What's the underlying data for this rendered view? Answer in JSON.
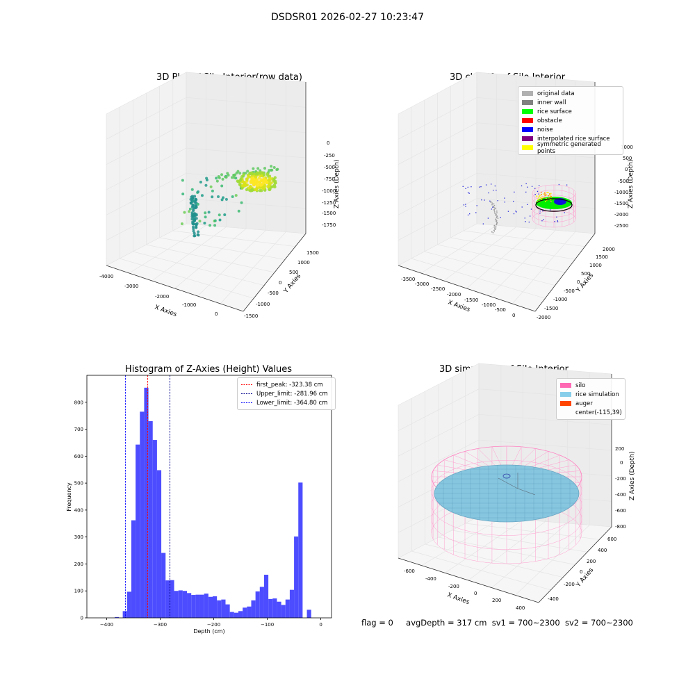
{
  "page": {
    "suptitle": "DSDSR01 2026-02-27 10:23:47",
    "footer": {
      "flag": "flag = 0",
      "avg_depth": "avgDepth = 317 cm",
      "sv1": "sv1 = 700~2300",
      "sv2": "sv2 = 700~2300"
    }
  },
  "chart_data": [
    {
      "type": "scatter",
      "title": "3D Plot of Silo Interior(row data)",
      "xlabel": "X Axies",
      "ylabel": "Y Axies",
      "zlabel": "Z Axies (Depth)",
      "xticks": [
        "-4000",
        "-3000",
        "-2000",
        "-1000",
        "0"
      ],
      "yticks": [
        "-1500",
        "-1000",
        "-500",
        "0",
        "500",
        "1000",
        "1500"
      ],
      "zticks": [
        "0",
        "-250",
        "-500",
        "-750",
        "-1000",
        "-1250",
        "-1500",
        "-1750"
      ],
      "grid": true
    },
    {
      "type": "scatter",
      "title": "3D classify of Silo Interior",
      "xlabel": "X Axies",
      "ylabel": "Y Axies",
      "zlabel": "Z Axies (Depth)",
      "xticks": [
        "-3500",
        "-3000",
        "-2500",
        "-2000",
        "-1500",
        "-1000",
        "-500",
        "0"
      ],
      "yticks": [
        "-2000",
        "-1500",
        "-1000",
        "-500",
        "0",
        "500",
        "1000",
        "1500",
        "2000"
      ],
      "zticks": [
        "1000",
        "500",
        "0",
        "-500",
        "-1000",
        "-1500",
        "-2000",
        "-2500"
      ],
      "legend": [
        {
          "name": "original data",
          "color": "#b0b0b0"
        },
        {
          "name": "inner wall",
          "color": "#808080"
        },
        {
          "name": "rice surface",
          "color": "#00ff00"
        },
        {
          "name": "obstacle",
          "color": "#ff0000"
        },
        {
          "name": "noise",
          "color": "#0000ff"
        },
        {
          "name": "interpolated rice surface",
          "color": "#800080"
        },
        {
          "name": "symmetric generated points",
          "color": "#ffff00"
        }
      ],
      "legend_position": "top-right",
      "grid": true
    },
    {
      "type": "bar",
      "title": "Histogram of Z-Axies (Height) Values",
      "xlabel": "Depth (cm)",
      "ylabel": "Frequency",
      "xlim": [
        -437,
        20
      ],
      "ylim": [
        0,
        900
      ],
      "xticks": [
        -400,
        -300,
        -200,
        -100,
        0
      ],
      "yticks": [
        0,
        100,
        200,
        300,
        400,
        500,
        600,
        700,
        800
      ],
      "bin_width": 8,
      "bins": [
        [
          -425,
          0
        ],
        [
          -417,
          0
        ],
        [
          -409,
          0
        ],
        [
          -401,
          0
        ],
        [
          -393,
          0
        ],
        [
          -385,
          3
        ],
        [
          -377,
          0
        ],
        [
          -369,
          0
        ],
        [
          -370,
          25
        ],
        [
          -362,
          97
        ],
        [
          -354,
          362
        ],
        [
          -346,
          643
        ],
        [
          -338,
          765
        ],
        [
          -330,
          854
        ],
        [
          -322,
          730
        ],
        [
          -314,
          660
        ],
        [
          -306,
          548
        ],
        [
          -298,
          241
        ],
        [
          -290,
          139
        ],
        [
          -282,
          140
        ],
        [
          -274,
          100
        ],
        [
          -266,
          102
        ],
        [
          -258,
          100
        ],
        [
          -250,
          92
        ],
        [
          -242,
          85
        ],
        [
          -234,
          86
        ],
        [
          -226,
          86
        ],
        [
          -218,
          90
        ],
        [
          -210,
          78
        ],
        [
          -202,
          80
        ],
        [
          -194,
          65
        ],
        [
          -186,
          68
        ],
        [
          -178,
          50
        ],
        [
          -170,
          22
        ],
        [
          -162,
          19
        ],
        [
          -154,
          25
        ],
        [
          -146,
          38
        ],
        [
          -138,
          42
        ],
        [
          -130,
          65
        ],
        [
          -122,
          98
        ],
        [
          -114,
          115
        ],
        [
          -106,
          160
        ],
        [
          -98,
          70
        ],
        [
          -90,
          72
        ],
        [
          -82,
          60
        ],
        [
          -74,
          48
        ],
        [
          -66,
          68
        ],
        [
          -58,
          104
        ],
        [
          -50,
          302
        ],
        [
          -42,
          502
        ],
        [
          -34,
          0
        ],
        [
          -26,
          30
        ]
      ],
      "vlines": [
        {
          "name": "first_peak: -323.38 cm",
          "x": -323.38,
          "color": "#ff0000"
        },
        {
          "name": "Upper_limit: -281.96 cm",
          "x": -281.96,
          "color": "#00008b"
        },
        {
          "name": "Lower_limit: -364.80 cm",
          "x": -364.8,
          "color": "#0000ff"
        }
      ],
      "bar_color": "#4d4dff",
      "legend_position": "top-right"
    },
    {
      "type": "scatter",
      "title": "3D simulation of Silo Interior",
      "xlabel": "X Axies",
      "ylabel": "Y Axies",
      "zlabel": "Z Axies (Depth)",
      "xticks": [
        "-600",
        "-400",
        "-200",
        "0",
        "200",
        "400"
      ],
      "yticks": [
        "-400",
        "-200",
        "0",
        "200",
        "400",
        "600"
      ],
      "zticks": [
        "200",
        "0",
        "-200",
        "-400",
        "-600",
        "-800"
      ],
      "legend": [
        {
          "name": "silo",
          "color": "#ff69b4"
        },
        {
          "name": "rice simulation",
          "color": "#87ceeb"
        },
        {
          "name": "auger",
          "color": "#ff4500"
        },
        {
          "name": "center(-115,39)",
          "color": ""
        }
      ],
      "legend_position": "top-right",
      "grid": true
    }
  ]
}
